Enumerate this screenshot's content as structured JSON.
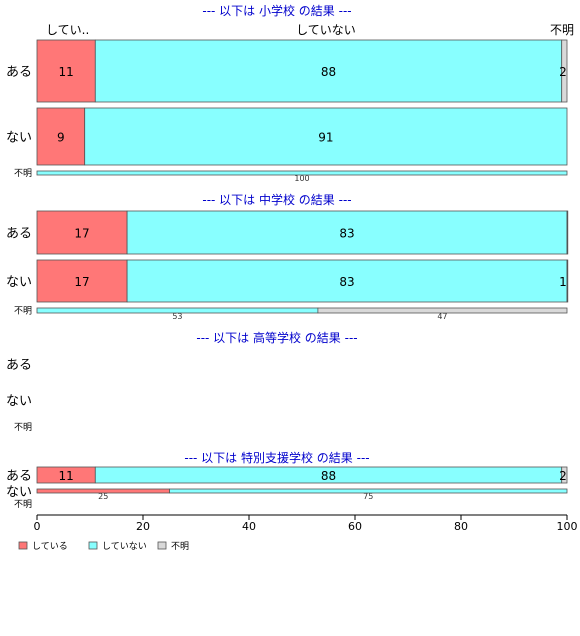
{
  "chart_data": {
    "type": "bar",
    "orientation": "horizontal",
    "stacked": true,
    "xlim": [
      0,
      100
    ],
    "x_ticks": [
      "0",
      "20",
      "40",
      "60",
      "80",
      "100"
    ],
    "colors": {
      "している": "#ff7777",
      "していない": "#88ffff",
      "不明": "#d9d9d9",
      "title": "#0000cc"
    },
    "top_labels": [
      "してい..",
      "していない",
      "不明"
    ],
    "legend": {
      "position": "bottom-left",
      "entries": [
        "している",
        "していない",
        "不明"
      ]
    },
    "panels": [
      {
        "title": "--- 以下は 小学校 の結果 ---",
        "rows": [
          {
            "category": "ある",
            "values": [
              11,
              88,
              2
            ],
            "labels": [
              "11",
              "88",
              "2"
            ]
          },
          {
            "category": "ない",
            "values": [
              9,
              91,
              0
            ],
            "labels": [
              "9",
              "91",
              ""
            ]
          },
          {
            "category": "不明",
            "values": [
              0,
              100,
              0
            ],
            "labels": [
              "",
              "100",
              ""
            ]
          }
        ]
      },
      {
        "title": "--- 以下は 中学校 の結果 ---",
        "rows": [
          {
            "category": "ある",
            "values": [
              17,
              83,
              0.5
            ],
            "labels": [
              "17",
              "83",
              ""
            ]
          },
          {
            "category": "ない",
            "values": [
              17,
              83,
              1
            ],
            "labels": [
              "17",
              "83",
              "1"
            ]
          },
          {
            "category": "不明",
            "values": [
              0,
              53,
              47
            ],
            "labels": [
              "",
              "53",
              "47"
            ]
          }
        ]
      },
      {
        "title": "--- 以下は 高等学校 の結果 ---",
        "rows": [
          {
            "category": "ある",
            "values": [
              0,
              0,
              0
            ],
            "labels": [
              "",
              "",
              ""
            ]
          },
          {
            "category": "ない",
            "values": [
              0,
              0,
              0
            ],
            "labels": [
              "",
              "",
              ""
            ]
          },
          {
            "category": "不明",
            "values": [
              0,
              0,
              0
            ],
            "labels": [
              "",
              "",
              ""
            ]
          }
        ]
      },
      {
        "title": "--- 以下は 特別支援学校 の結果 ---",
        "rows": [
          {
            "category": "ある",
            "values": [
              11,
              88,
              2
            ],
            "labels": [
              "11",
              "88",
              "2"
            ]
          },
          {
            "category": "ない",
            "values": [
              25,
              75,
              0
            ],
            "labels": [
              "25",
              "75",
              ""
            ]
          },
          {
            "category": "不明",
            "values": [
              0,
              0,
              0
            ],
            "labels": [
              "",
              "",
              ""
            ]
          }
        ]
      }
    ]
  }
}
